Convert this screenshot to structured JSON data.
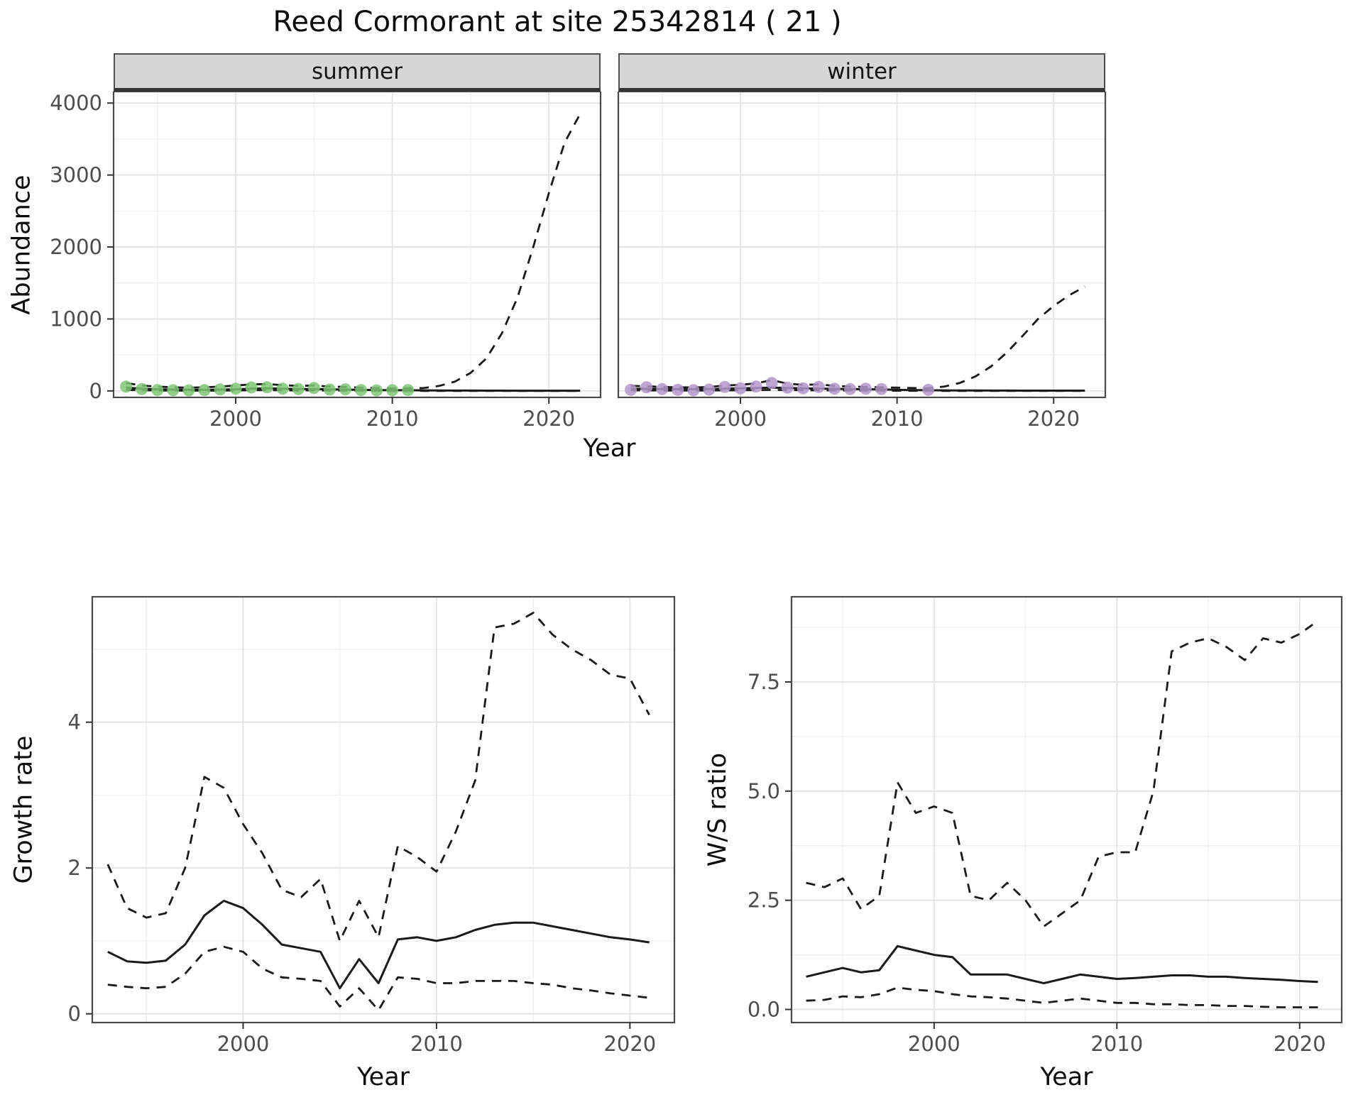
{
  "title": "Reed Cormorant at site 25342814 ( 21 )",
  "chart_data": {
    "abundance": {
      "type": "line",
      "xlabel": "Year",
      "ylabel": "Abundance",
      "xlim": [
        1992.2,
        2023.3
      ],
      "ylim": [
        -90,
        4160
      ],
      "xticks": [
        2000,
        2010,
        2020
      ],
      "xtick_labels": [
        "2000",
        "2010",
        "2020"
      ],
      "xminor": [
        1995,
        2005,
        2015
      ],
      "yticks": [
        0,
        1000,
        2000,
        3000,
        4000
      ],
      "ytick_labels": [
        "0",
        "1000",
        "2000",
        "3000",
        "4000"
      ],
      "yminor": [
        500,
        1500,
        2500,
        3500
      ],
      "legend": "none",
      "grid": true,
      "facets": [
        {
          "label": "summer",
          "point_color": "#7cc674",
          "points": {
            "x": [
              1993,
              1994,
              1995,
              1996,
              1997,
              1998,
              1999,
              2000,
              2001,
              2002,
              2003,
              2004,
              2005,
              2006,
              2007,
              2008,
              2009,
              2010,
              2011
            ],
            "y": [
              60,
              25,
              12,
              10,
              8,
              12,
              20,
              30,
              48,
              50,
              30,
              25,
              40,
              18,
              22,
              12,
              8,
              10,
              12
            ]
          },
          "series": [
            {
              "name": "fit-median",
              "style": "solid",
              "x": [
                1993,
                1994,
                1995,
                1996,
                1997,
                1998,
                1999,
                2000,
                2001,
                2002,
                2003,
                2004,
                2005,
                2006,
                2007,
                2008,
                2009,
                2010,
                2011,
                2012,
                2013,
                2014,
                2015,
                2016,
                2017,
                2018,
                2019,
                2020,
                2021,
                2022
              ],
              "y": [
                45,
                30,
                22,
                18,
                15,
                15,
                18,
                22,
                30,
                35,
                30,
                25,
                25,
                20,
                18,
                15,
                12,
                10,
                10,
                8,
                6,
                5,
                5,
                4,
                4,
                3,
                3,
                3,
                3,
                3
              ]
            },
            {
              "name": "ci-upper",
              "style": "dashed",
              "x": [
                1993,
                1994,
                1995,
                1996,
                1997,
                1998,
                1999,
                2000,
                2001,
                2002,
                2003,
                2004,
                2005,
                2006,
                2007,
                2008,
                2009,
                2010,
                2011,
                2012,
                2013,
                2014,
                2015,
                2016,
                2017,
                2018,
                2019,
                2020,
                2021,
                2022
              ],
              "y": [
                110,
                75,
                60,
                50,
                45,
                50,
                60,
                75,
                90,
                95,
                80,
                70,
                75,
                60,
                55,
                45,
                40,
                35,
                35,
                40,
                70,
                130,
                250,
                450,
                800,
                1300,
                2000,
                2750,
                3450,
                3850
              ]
            },
            {
              "name": "ci-lower",
              "style": "dashed",
              "x": [
                1993,
                1994,
                1995,
                1996,
                1997,
                1998,
                1999,
                2000,
                2001,
                2002,
                2003,
                2004,
                2005,
                2006,
                2007,
                2008,
                2009,
                2010,
                2011,
                2012,
                2013,
                2014,
                2015,
                2016,
                2017,
                2018,
                2019,
                2020,
                2021,
                2022
              ],
              "y": [
                15,
                10,
                6,
                5,
                4,
                4,
                5,
                7,
                10,
                12,
                9,
                7,
                8,
                6,
                5,
                4,
                3,
                2,
                2,
                1,
                1,
                0,
                0,
                0,
                0,
                0,
                0,
                0,
                0,
                0
              ]
            }
          ]
        },
        {
          "label": "winter",
          "point_color": "#b495c9",
          "points": {
            "x": [
              1993,
              1994,
              1995,
              1996,
              1997,
              1998,
              1999,
              2000,
              2001,
              2002,
              2003,
              2004,
              2005,
              2006,
              2007,
              2008,
              2009,
              2012
            ],
            "y": [
              15,
              50,
              25,
              15,
              10,
              18,
              55,
              35,
              60,
              110,
              45,
              35,
              55,
              30,
              25,
              30,
              25,
              15
            ]
          },
          "series": [
            {
              "name": "fit-median",
              "style": "solid",
              "x": [
                1993,
                1994,
                1995,
                1996,
                1997,
                1998,
                1999,
                2000,
                2001,
                2002,
                2003,
                2004,
                2005,
                2006,
                2007,
                2008,
                2009,
                2010,
                2011,
                2012,
                2013,
                2014,
                2015,
                2016,
                2017,
                2018,
                2019,
                2020,
                2021,
                2022
              ],
              "y": [
                30,
                28,
                25,
                24,
                24,
                26,
                30,
                35,
                40,
                45,
                40,
                35,
                32,
                28,
                25,
                22,
                20,
                15,
                12,
                10,
                8,
                7,
                6,
                5,
                5,
                4,
                4,
                4,
                4,
                4
              ]
            },
            {
              "name": "ci-upper",
              "style": "dashed",
              "x": [
                1993,
                1994,
                1995,
                1996,
                1997,
                1998,
                1999,
                2000,
                2001,
                2002,
                2003,
                2004,
                2005,
                2006,
                2007,
                2008,
                2009,
                2010,
                2011,
                2012,
                2013,
                2014,
                2015,
                2016,
                2017,
                2018,
                2019,
                2020,
                2021,
                2022
              ],
              "y": [
                70,
                65,
                55,
                50,
                48,
                55,
                75,
                85,
                105,
                150,
                100,
                85,
                90,
                70,
                60,
                55,
                50,
                45,
                40,
                38,
                60,
                110,
                200,
                340,
                530,
                760,
                1000,
                1180,
                1330,
                1450
              ]
            },
            {
              "name": "ci-lower",
              "style": "dashed",
              "x": [
                1993,
                1994,
                1995,
                1996,
                1997,
                1998,
                1999,
                2000,
                2001,
                2002,
                2003,
                2004,
                2005,
                2006,
                2007,
                2008,
                2009,
                2010,
                2011,
                2012,
                2013,
                2014,
                2015,
                2016,
                2017,
                2018,
                2019,
                2020,
                2021,
                2022
              ],
              "y": [
                8,
                7,
                6,
                5,
                5,
                6,
                8,
                10,
                12,
                15,
                12,
                10,
                9,
                7,
                6,
                5,
                4,
                3,
                2,
                2,
                1,
                1,
                0,
                0,
                0,
                0,
                0,
                0,
                0,
                0
              ]
            }
          ]
        }
      ]
    },
    "growth_rate": {
      "type": "line",
      "xlabel": "Year",
      "ylabel": "Growth rate",
      "xlim": [
        1992.2,
        2022.3
      ],
      "ylim": [
        -0.12,
        5.72
      ],
      "xticks": [
        2000,
        2010,
        2020
      ],
      "xtick_labels": [
        "2000",
        "2010",
        "2020"
      ],
      "xminor": [
        1995,
        2005,
        2015
      ],
      "yticks": [
        0,
        2,
        4
      ],
      "ytick_labels": [
        "0",
        "2",
        "4"
      ],
      "yminor": [
        1,
        3,
        5
      ],
      "legend": "none",
      "grid": true,
      "series": [
        {
          "name": "fit-median",
          "style": "solid",
          "x": [
            1993,
            1994,
            1995,
            1996,
            1997,
            1998,
            1999,
            2000,
            2001,
            2002,
            2003,
            2004,
            2005,
            2006,
            2007,
            2008,
            2009,
            2010,
            2011,
            2012,
            2013,
            2014,
            2015,
            2016,
            2017,
            2018,
            2019,
            2020,
            2021
          ],
          "y": [
            0.85,
            0.72,
            0.7,
            0.73,
            0.95,
            1.35,
            1.55,
            1.45,
            1.22,
            0.95,
            0.9,
            0.85,
            0.35,
            0.75,
            0.42,
            1.02,
            1.05,
            1.0,
            1.05,
            1.15,
            1.22,
            1.25,
            1.25,
            1.2,
            1.15,
            1.1,
            1.05,
            1.02,
            0.98
          ]
        },
        {
          "name": "ci-upper",
          "style": "dashed",
          "x": [
            1993,
            1994,
            1995,
            1996,
            1997,
            1998,
            1999,
            2000,
            2001,
            2002,
            2003,
            2004,
            2005,
            2006,
            2007,
            2008,
            2009,
            2010,
            2011,
            2012,
            2013,
            2014,
            2015,
            2016,
            2017,
            2018,
            2019,
            2020,
            2021
          ],
          "y": [
            2.05,
            1.45,
            1.32,
            1.38,
            2.0,
            3.25,
            3.1,
            2.6,
            2.2,
            1.7,
            1.6,
            1.85,
            1.0,
            1.55,
            1.05,
            2.3,
            2.15,
            1.95,
            2.5,
            3.2,
            5.3,
            5.35,
            5.5,
            5.2,
            5.0,
            4.85,
            4.65,
            4.6,
            4.1
          ]
        },
        {
          "name": "ci-lower",
          "style": "dashed",
          "x": [
            1993,
            1994,
            1995,
            1996,
            1997,
            1998,
            1999,
            2000,
            2001,
            2002,
            2003,
            2004,
            2005,
            2006,
            2007,
            2008,
            2009,
            2010,
            2011,
            2012,
            2013,
            2014,
            2015,
            2016,
            2017,
            2018,
            2019,
            2020,
            2021
          ],
          "y": [
            0.4,
            0.37,
            0.35,
            0.37,
            0.55,
            0.85,
            0.92,
            0.85,
            0.62,
            0.5,
            0.48,
            0.45,
            0.1,
            0.35,
            0.05,
            0.5,
            0.48,
            0.42,
            0.42,
            0.45,
            0.45,
            0.45,
            0.42,
            0.4,
            0.35,
            0.32,
            0.28,
            0.25,
            0.22
          ]
        }
      ]
    },
    "ws_ratio": {
      "type": "line",
      "xlabel": "Year",
      "ylabel": "W/S ratio",
      "xlim": [
        1992.2,
        2022.3
      ],
      "ylim": [
        -0.3,
        9.45
      ],
      "xticks": [
        2000,
        2010,
        2020
      ],
      "xtick_labels": [
        "2000",
        "2010",
        "2020"
      ],
      "xminor": [
        1995,
        2005,
        2015
      ],
      "yticks": [
        0,
        2.5,
        5,
        7.5
      ],
      "ytick_labels": [
        "0.0",
        "2.5",
        "5.0",
        "7.5"
      ],
      "yminor": [
        1.25,
        3.75,
        6.25,
        8.75
      ],
      "legend": "none",
      "grid": true,
      "series": [
        {
          "name": "fit-median",
          "style": "solid",
          "x": [
            1993,
            1994,
            1995,
            1996,
            1997,
            1998,
            1999,
            2000,
            2001,
            2002,
            2003,
            2004,
            2005,
            2006,
            2007,
            2008,
            2009,
            2010,
            2011,
            2012,
            2013,
            2014,
            2015,
            2016,
            2017,
            2018,
            2019,
            2020,
            2021
          ],
          "y": [
            0.75,
            0.85,
            0.95,
            0.85,
            0.9,
            1.45,
            1.35,
            1.25,
            1.2,
            0.8,
            0.8,
            0.8,
            0.7,
            0.6,
            0.7,
            0.8,
            0.75,
            0.7,
            0.72,
            0.75,
            0.78,
            0.78,
            0.75,
            0.75,
            0.72,
            0.7,
            0.68,
            0.65,
            0.63
          ]
        },
        {
          "name": "ci-upper",
          "style": "dashed",
          "x": [
            1993,
            1994,
            1995,
            1996,
            1997,
            1998,
            1999,
            2000,
            2001,
            2002,
            2003,
            2004,
            2005,
            2006,
            2007,
            2008,
            2009,
            2010,
            2011,
            2012,
            2013,
            2014,
            2015,
            2016,
            2017,
            2018,
            2019,
            2020,
            2021
          ],
          "y": [
            2.9,
            2.8,
            3.0,
            2.3,
            2.6,
            5.2,
            4.5,
            4.65,
            4.5,
            2.6,
            2.5,
            2.9,
            2.5,
            1.9,
            2.2,
            2.5,
            3.5,
            3.6,
            3.6,
            5.0,
            8.2,
            8.4,
            8.5,
            8.3,
            8.0,
            8.5,
            8.4,
            8.6,
            8.9
          ]
        },
        {
          "name": "ci-lower",
          "style": "dashed",
          "x": [
            1993,
            1994,
            1995,
            1996,
            1997,
            1998,
            1999,
            2000,
            2001,
            2002,
            2003,
            2004,
            2005,
            2006,
            2007,
            2008,
            2009,
            2010,
            2011,
            2012,
            2013,
            2014,
            2015,
            2016,
            2017,
            2018,
            2019,
            2020,
            2021
          ],
          "y": [
            0.2,
            0.22,
            0.3,
            0.28,
            0.35,
            0.5,
            0.45,
            0.42,
            0.35,
            0.3,
            0.28,
            0.25,
            0.2,
            0.15,
            0.2,
            0.25,
            0.2,
            0.15,
            0.15,
            0.12,
            0.12,
            0.1,
            0.1,
            0.08,
            0.08,
            0.06,
            0.05,
            0.05,
            0.05
          ]
        }
      ]
    }
  }
}
